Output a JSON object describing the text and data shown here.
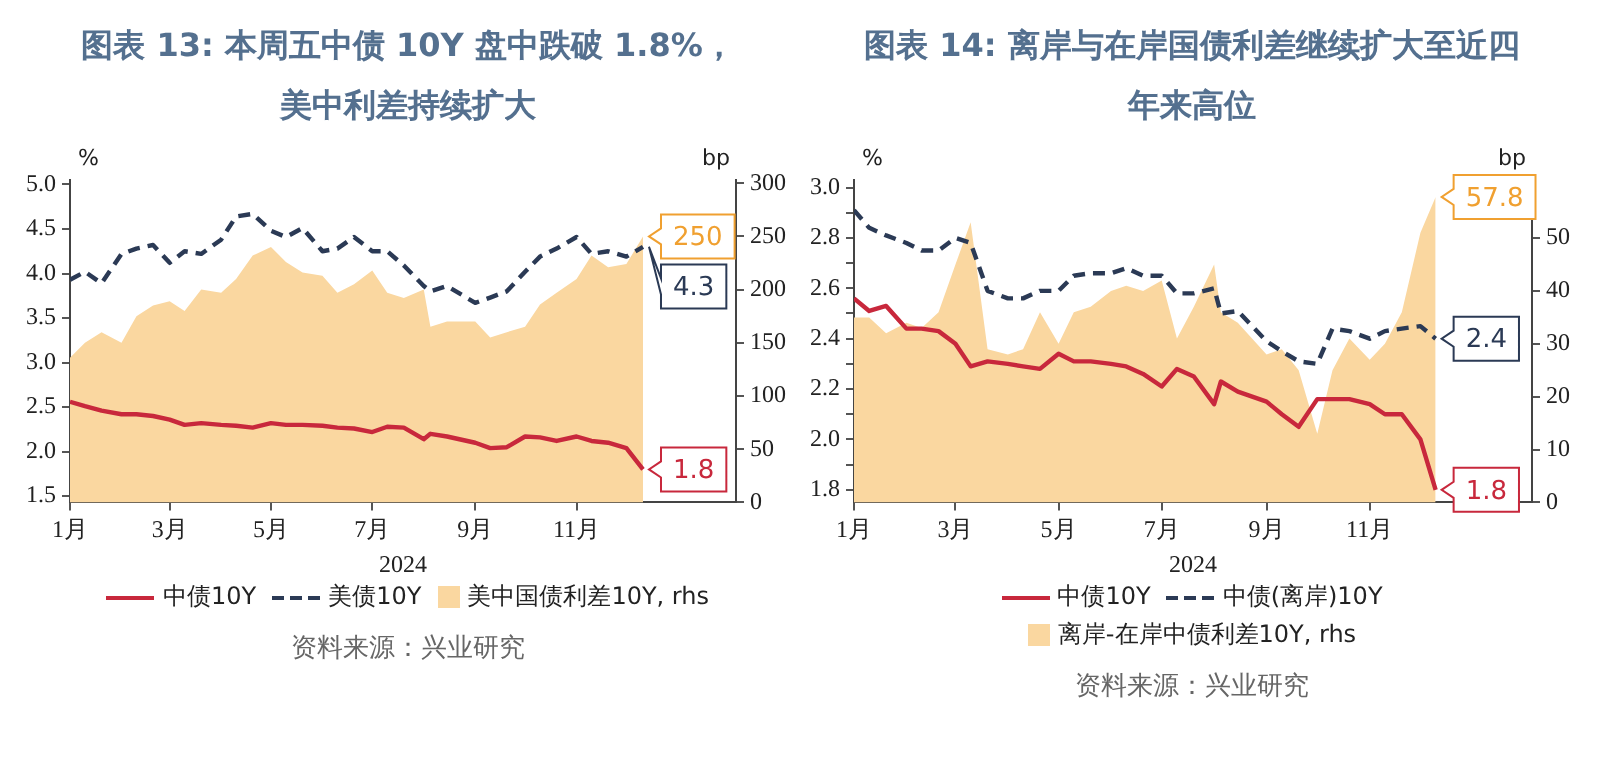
{
  "chart_data": [
    {
      "type": "line",
      "title": "图表 13: 本周五中债 10Y 盘中跌破 1.8%，美中利差持续扩大",
      "xlabel": "2024",
      "ylabel": "%",
      "y2label": "bp",
      "x": [
        "2024-01-01",
        "2024-01-10",
        "2024-01-20",
        "2024-02-01",
        "2024-02-10",
        "2024-02-20",
        "2024-03-01",
        "2024-03-10",
        "2024-03-20",
        "2024-04-01",
        "2024-04-10",
        "2024-04-20",
        "2024-05-01",
        "2024-05-10",
        "2024-05-20",
        "2024-06-01",
        "2024-06-10",
        "2024-06-20",
        "2024-07-01",
        "2024-07-10",
        "2024-07-20",
        "2024-08-01",
        "2024-08-05",
        "2024-08-15",
        "2024-09-01",
        "2024-09-10",
        "2024-09-20",
        "2024-10-01",
        "2024-10-10",
        "2024-10-20",
        "2024-11-01",
        "2024-11-10",
        "2024-11-20",
        "2024-12-01",
        "2024-12-11"
      ],
      "series": [
        {
          "name": "中债10Y",
          "color": "#c8283c",
          "line_style": "solid",
          "values": [
            2.56,
            2.51,
            2.46,
            2.42,
            2.42,
            2.4,
            2.36,
            2.3,
            2.32,
            2.3,
            2.29,
            2.27,
            2.32,
            2.3,
            2.3,
            2.29,
            2.27,
            2.26,
            2.22,
            2.28,
            2.27,
            2.14,
            2.2,
            2.17,
            2.1,
            2.04,
            2.05,
            2.17,
            2.16,
            2.12,
            2.17,
            2.12,
            2.1,
            2.04,
            1.8
          ],
          "value_labels": [
            null,
            null,
            null,
            null,
            null,
            null,
            null,
            null,
            null,
            null,
            null,
            null,
            null,
            null,
            null,
            null,
            null,
            null,
            null,
            null,
            null,
            null,
            null,
            null,
            null,
            null,
            null,
            null,
            null,
            null,
            null,
            null,
            null,
            null,
            "1.8"
          ]
        },
        {
          "name": "美债10Y",
          "color": "#2b3a55",
          "line_style": "dashed",
          "values": [
            3.93,
            4.02,
            3.89,
            4.22,
            4.28,
            4.32,
            4.12,
            4.25,
            4.22,
            4.38,
            4.64,
            4.67,
            4.48,
            4.41,
            4.51,
            4.25,
            4.28,
            4.41,
            4.25,
            4.25,
            4.09,
            3.86,
            3.8,
            3.86,
            3.67,
            3.73,
            3.8,
            4.02,
            4.19,
            4.28,
            4.41,
            4.22,
            4.25,
            4.19,
            4.3
          ],
          "value_labels": [
            null,
            null,
            null,
            null,
            null,
            null,
            null,
            null,
            null,
            null,
            null,
            null,
            null,
            null,
            null,
            null,
            null,
            null,
            null,
            null,
            null,
            null,
            null,
            null,
            null,
            null,
            null,
            null,
            null,
            null,
            null,
            null,
            null,
            null,
            "4.3"
          ]
        },
        {
          "name": "美中国债利差10Y, rhs",
          "type": "area",
          "axis": "y2",
          "color": "#fad7a0",
          "values": [
            136,
            150,
            160,
            150,
            175,
            185,
            189,
            180,
            200,
            197,
            210,
            232,
            240,
            226,
            216,
            213,
            197,
            205,
            218,
            197,
            192,
            200,
            165,
            170,
            170,
            155,
            160,
            165,
            186,
            197,
            210,
            232,
            221,
            224,
            250
          ],
          "value_labels": [
            null,
            null,
            null,
            null,
            null,
            null,
            null,
            null,
            null,
            null,
            null,
            null,
            null,
            null,
            null,
            null,
            null,
            null,
            null,
            null,
            null,
            null,
            null,
            null,
            null,
            null,
            null,
            null,
            null,
            null,
            null,
            null,
            null,
            null,
            "250"
          ]
        }
      ],
      "xlim": [
        "2024-01-01",
        "2025-02-05"
      ],
      "xticks": [
        {
          "value": "2024-01-01",
          "label": "1月"
        },
        {
          "value": "2024-03-01",
          "label": "3月"
        },
        {
          "value": "2024-05-01",
          "label": "5月"
        },
        {
          "value": "2024-07-01",
          "label": "7月"
        },
        {
          "value": "2024-09-01",
          "label": "9月"
        },
        {
          "value": "2024-11-01",
          "label": "11月"
        }
      ],
      "ylim": [
        1.43,
        5.05
      ],
      "yticks": [
        1.5,
        {
          "value": 2.0,
          "label": "2.0"
        },
        2.5,
        {
          "value": 3.0,
          "label": "3.0"
        },
        3.5,
        {
          "value": 4.0,
          "label": "4.0"
        },
        4.5,
        {
          "value": 5.0,
          "label": "5.0"
        }
      ],
      "y2lim": [
        0,
        303
      ],
      "y2ticks": [
        0,
        50,
        100,
        150,
        200,
        250,
        300
      ],
      "grid": false,
      "legend": "bottom",
      "annotations": [
        "资料来源：兴业研究"
      ]
    },
    {
      "type": "line",
      "title": "图表 14: 离岸与在岸国债利差继续扩大至近四年来高位",
      "xlabel": "2024",
      "ylabel": "%",
      "y2label": "bp",
      "x": [
        "2024-01-01",
        "2024-01-10",
        "2024-01-20",
        "2024-02-01",
        "2024-02-10",
        "2024-02-20",
        "2024-03-01",
        "2024-03-10",
        "2024-03-20",
        "2024-04-01",
        "2024-04-10",
        "2024-04-20",
        "2024-05-01",
        "2024-05-10",
        "2024-05-20",
        "2024-06-01",
        "2024-06-10",
        "2024-06-20",
        "2024-07-01",
        "2024-07-10",
        "2024-07-20",
        "2024-08-01",
        "2024-08-05",
        "2024-08-15",
        "2024-09-01",
        "2024-09-10",
        "2024-09-20",
        "2024-10-01",
        "2024-10-10",
        "2024-10-20",
        "2024-11-01",
        "2024-11-10",
        "2024-11-20",
        "2024-12-01",
        "2024-12-10"
      ],
      "series": [
        {
          "name": "中债10Y",
          "color": "#c8283c",
          "line_style": "solid",
          "values": [
            2.56,
            2.51,
            2.53,
            2.44,
            2.44,
            2.43,
            2.38,
            2.29,
            2.31,
            2.3,
            2.29,
            2.28,
            2.34,
            2.31,
            2.31,
            2.3,
            2.29,
            2.26,
            2.21,
            2.28,
            2.25,
            2.14,
            2.23,
            2.19,
            2.15,
            2.1,
            2.05,
            2.16,
            2.16,
            2.16,
            2.14,
            2.1,
            2.1,
            2.0,
            1.8
          ],
          "value_labels": [
            null,
            null,
            null,
            null,
            null,
            null,
            null,
            null,
            null,
            null,
            null,
            null,
            null,
            null,
            null,
            null,
            null,
            null,
            null,
            null,
            null,
            null,
            null,
            null,
            null,
            null,
            null,
            null,
            null,
            null,
            null,
            null,
            null,
            null,
            "1.8"
          ]
        },
        {
          "name": "中债(离岸)10Y",
          "color": "#2b3a55",
          "line_style": "dashed",
          "values": [
            2.91,
            2.84,
            2.81,
            2.78,
            2.75,
            2.75,
            2.8,
            2.78,
            2.59,
            2.56,
            2.56,
            2.59,
            2.59,
            2.65,
            2.66,
            2.66,
            2.68,
            2.65,
            2.65,
            2.58,
            2.58,
            2.6,
            2.5,
            2.51,
            2.39,
            2.35,
            2.31,
            2.3,
            2.44,
            2.43,
            2.4,
            2.43,
            2.44,
            2.45,
            2.4
          ],
          "value_labels": [
            null,
            null,
            null,
            null,
            null,
            null,
            null,
            null,
            null,
            null,
            null,
            null,
            null,
            null,
            null,
            null,
            null,
            null,
            null,
            null,
            null,
            null,
            null,
            null,
            null,
            null,
            null,
            null,
            null,
            null,
            null,
            null,
            null,
            null,
            "2.4"
          ]
        },
        {
          "name": "离岸-在岸中债利差10Y, rhs",
          "type": "area",
          "axis": "y2",
          "color": "#fad7a0",
          "values": [
            35,
            35,
            32,
            34,
            33,
            36,
            45,
            53,
            29,
            28,
            29,
            36,
            30,
            36,
            37,
            40,
            41,
            40,
            42,
            31,
            37,
            45,
            36,
            34,
            28,
            29,
            25,
            13,
            25,
            31,
            27,
            30,
            36,
            51,
            57.8
          ],
          "value_labels": [
            null,
            null,
            null,
            null,
            null,
            null,
            null,
            null,
            null,
            null,
            null,
            null,
            null,
            null,
            null,
            null,
            null,
            null,
            null,
            null,
            null,
            null,
            null,
            null,
            null,
            null,
            null,
            null,
            null,
            null,
            null,
            null,
            null,
            null,
            "57.8"
          ]
        }
      ],
      "xlim": [
        "2024-01-01",
        "2025-02-05"
      ],
      "xticks": [
        {
          "value": "2024-01-01",
          "label": "1月"
        },
        {
          "value": "2024-03-01",
          "label": "3月"
        },
        {
          "value": "2024-05-01",
          "label": "5月"
        },
        {
          "value": "2024-07-01",
          "label": "7月"
        },
        {
          "value": "2024-09-01",
          "label": "9月"
        },
        {
          "value": "2024-11-01",
          "label": "11月"
        }
      ],
      "ylim": [
        1.75,
        3.03
      ],
      "yticks": [
        {
          "value": 1.8,
          "label": "1.8"
        },
        {
          "value": 1.9,
          "label": null
        },
        {
          "value": 2.0,
          "label": "2.0"
        },
        {
          "value": 2.1,
          "label": null
        },
        {
          "value": 2.2,
          "label": "2.2"
        },
        {
          "value": 2.3,
          "label": null
        },
        {
          "value": 2.4,
          "label": "2.4"
        },
        {
          "value": 2.5,
          "label": null
        },
        {
          "value": 2.6,
          "label": "2.6"
        },
        {
          "value": 2.7,
          "label": null
        },
        {
          "value": 2.8,
          "label": "2.8"
        },
        {
          "value": 2.9,
          "label": null
        },
        {
          "value": 3.0,
          "label": "3.0"
        }
      ],
      "y2lim": [
        0,
        61
      ],
      "y2ticks": [
        0,
        10,
        20,
        30,
        40,
        50
      ],
      "grid": false,
      "legend": "bottom",
      "annotations": [
        "资料来源：兴业研究"
      ]
    }
  ]
}
